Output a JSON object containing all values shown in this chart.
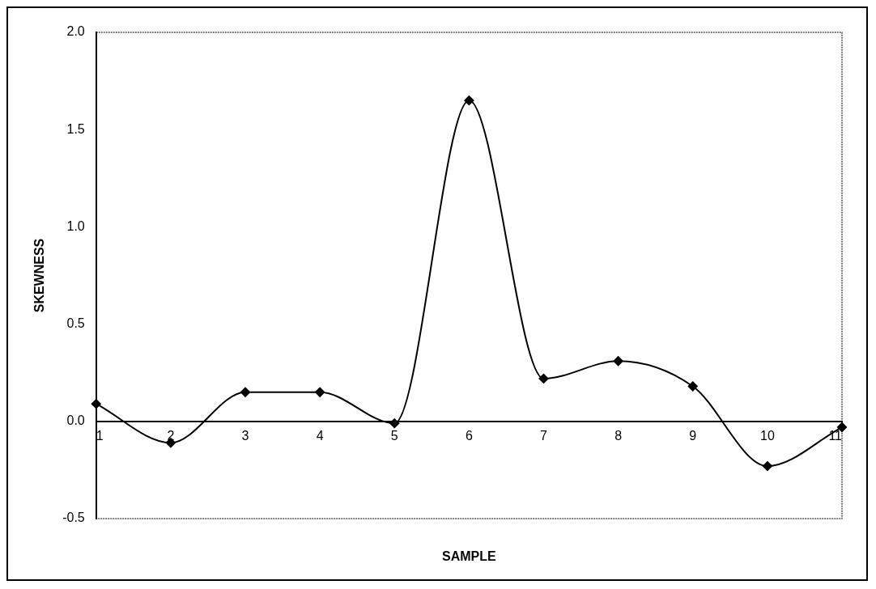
{
  "chart_data": {
    "type": "line",
    "xlabel": "SAMPLE",
    "ylabel": "SKEWNESS",
    "categories": [
      "1",
      "2",
      "3",
      "4",
      "5",
      "6",
      "7",
      "8",
      "9",
      "10",
      "11"
    ],
    "series": [
      {
        "color": "#000000",
        "values": [
          0.09,
          -0.11,
          0.15,
          0.15,
          -0.01,
          1.65,
          0.22,
          0.31,
          0.18,
          -0.23,
          -0.03
        ]
      }
    ],
    "ylim": [
      -0.5,
      2.0
    ],
    "yticks": [
      {
        "value": -0.5,
        "label": "-0.5"
      },
      {
        "value": 0,
        "label": "0.0"
      },
      {
        "value": 0.5,
        "label": "0.5"
      },
      {
        "value": 1,
        "label": "1.0"
      },
      {
        "value": 1.5,
        "label": "1.5"
      },
      {
        "value": 2,
        "label": "2.0"
      }
    ],
    "grid": false,
    "legend": false,
    "marker": "diamond",
    "line_style": "solid"
  }
}
